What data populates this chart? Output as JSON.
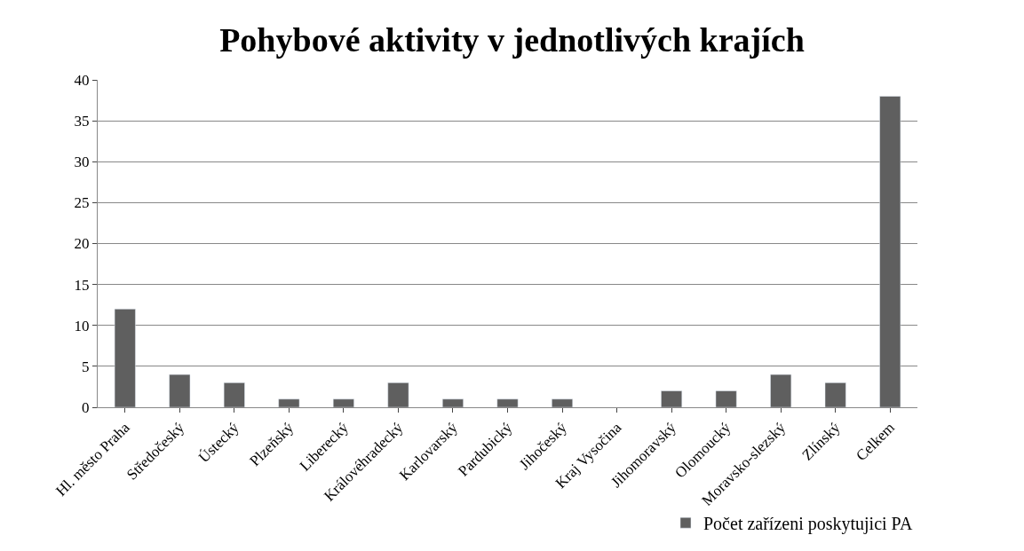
{
  "chart_data": {
    "type": "bar",
    "title": "Pohybové aktivity v jednotlivých krajích",
    "categories": [
      "Hl. město Praha",
      "Středočeský",
      "Ústecký",
      "Plzeňský",
      "Liberecký",
      "Královéhradecký",
      "Karlovarský",
      "Pardubický",
      "Jihočeský",
      "Kraj Vysočina",
      "Jihomoravský",
      "Olomoucký",
      "Moravsko-slezský",
      "Zlínský",
      "Celkem"
    ],
    "series": [
      {
        "name": "Počet zařízeni poskytujici PA",
        "color": "#5f5f5f",
        "values": [
          12,
          4,
          3,
          1,
          1,
          3,
          1,
          1,
          1,
          null,
          2,
          2,
          4,
          3,
          38
        ]
      }
    ],
    "ylim": [
      0,
      40
    ],
    "yticks": [
      0,
      5,
      10,
      15,
      20,
      25,
      30,
      35,
      40
    ],
    "grid": "y",
    "legend": "bottom right"
  }
}
